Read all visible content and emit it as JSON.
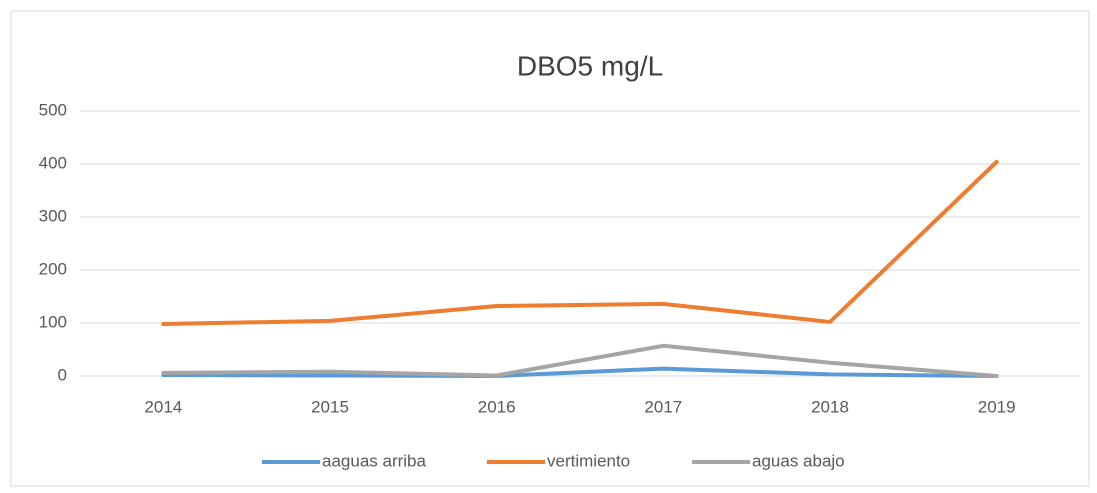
{
  "chart_data": {
    "type": "line",
    "title": "DBO5 mg/L",
    "categories": [
      "2014",
      "2015",
      "2016",
      "2017",
      "2018",
      "2019"
    ],
    "series": [
      {
        "name": "aaguas arriba",
        "color": "#5b9bd5",
        "values": [
          2,
          1,
          0,
          14,
          3,
          0
        ]
      },
      {
        "name": "vertimiento",
        "color": "#ed7d31",
        "values": [
          98,
          104,
          132,
          136,
          102,
          404
        ]
      },
      {
        "name": "aguas abajo",
        "color": "#a5a5a5",
        "values": [
          6,
          8,
          1,
          57,
          25,
          0
        ]
      }
    ],
    "ylim": [
      0,
      500
    ],
    "yticks": [
      0,
      100,
      200,
      300,
      400,
      500
    ],
    "grid": true,
    "legend": "bottom"
  }
}
